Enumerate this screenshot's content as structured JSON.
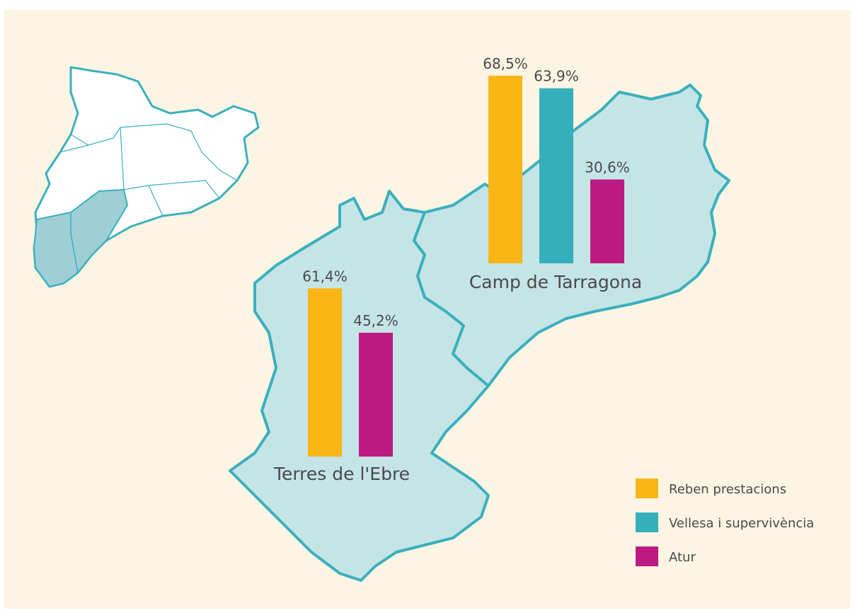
{
  "chart_data": {
    "type": "bar",
    "categories": [
      "Camp de Tarragona",
      "Terres de l'Ebre"
    ],
    "series": [
      {
        "name": "Reben prestacions",
        "color": "#f9b616",
        "values": [
          68.5,
          61.4
        ],
        "value_labels": [
          "68,5%",
          "61,4%"
        ]
      },
      {
        "name": "Vellesa i supervivència",
        "color": "#34afbb",
        "values": [
          63.9,
          null
        ],
        "value_labels": [
          "63,9%",
          null
        ]
      },
      {
        "name": "Atur",
        "color": "#bc1a80",
        "values": [
          30.6,
          45.2
        ],
        "value_labels": [
          "30,6%",
          "45,2%"
        ]
      }
    ]
  }
}
